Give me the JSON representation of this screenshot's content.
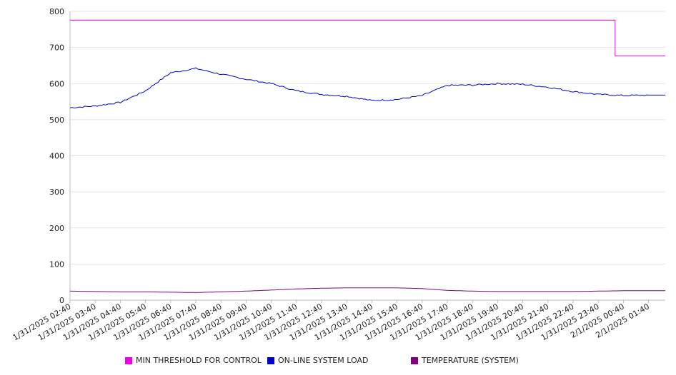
{
  "chart_data": {
    "type": "line",
    "title": "",
    "xlabel": "",
    "ylabel": "",
    "ylim": [
      0,
      800
    ],
    "yticks": [
      0,
      100,
      200,
      300,
      400,
      500,
      600,
      700,
      800
    ],
    "grid": true,
    "legend_position": "bottom",
    "x_tick_labels": [
      "1/31/2025 02:40",
      "1/31/2025 03:40",
      "1/31/2025 04:40",
      "1/31/2025 05:40",
      "1/31/2025 06:40",
      "1/31/2025 07:40",
      "1/31/2025 08:40",
      "1/31/2025 09:40",
      "1/31/2025 10:40",
      "1/31/2025 11:40",
      "1/31/2025 12:40",
      "1/31/2025 13:40",
      "1/31/2025 14:40",
      "1/31/2025 15:40",
      "1/31/2025 16:40",
      "1/31/2025 17:40",
      "1/31/2025 18:40",
      "1/31/2025 19:40",
      "1/31/2025 20:40",
      "1/31/2025 21:40",
      "1/31/2025 22:40",
      "1/31/2025 23:40",
      "2/1/2025 00:40",
      "2/1/2025 01:40"
    ],
    "x": [
      "1/31/2025 02:40",
      "1/31/2025 03:40",
      "1/31/2025 04:40",
      "1/31/2025 05:40",
      "1/31/2025 06:40",
      "1/31/2025 07:40",
      "1/31/2025 08:40",
      "1/31/2025 09:40",
      "1/31/2025 10:40",
      "1/31/2025 11:40",
      "1/31/2025 12:40",
      "1/31/2025 13:40",
      "1/31/2025 14:40",
      "1/31/2025 15:40",
      "1/31/2025 16:40",
      "1/31/2025 17:40",
      "1/31/2025 18:40",
      "1/31/2025 19:40",
      "1/31/2025 20:40",
      "1/31/2025 21:40",
      "1/31/2025 22:40",
      "1/31/2025 23:40",
      "2/1/2025 00:40",
      "2/1/2025 01:40"
    ],
    "series": [
      {
        "name": "MIN THRESHOLD FOR CONTROL",
        "color": "#ee00ee",
        "values": [
          776,
          776,
          776,
          776,
          776,
          776,
          776,
          776,
          776,
          776,
          776,
          776,
          776,
          776,
          776,
          776,
          776,
          776,
          776,
          776,
          776,
          776,
          677,
          677
        ]
      },
      {
        "name": "ON-LINE SYSTEM LOAD",
        "color": "#0000cc",
        "values": [
          533,
          538,
          548,
          580,
          630,
          642,
          626,
          612,
          600,
          580,
          570,
          565,
          553,
          556,
          567,
          595,
          596,
          600,
          598,
          590,
          578,
          570,
          567,
          568
        ]
      },
      {
        "name": "TEMPERATURE (SYSTEM)",
        "color": "#800080",
        "values": [
          25,
          24,
          23,
          23,
          22,
          21,
          23,
          25,
          28,
          31,
          33,
          34,
          34,
          34,
          32,
          27,
          25,
          24,
          24,
          24,
          24,
          25,
          26,
          26
        ]
      }
    ]
  }
}
